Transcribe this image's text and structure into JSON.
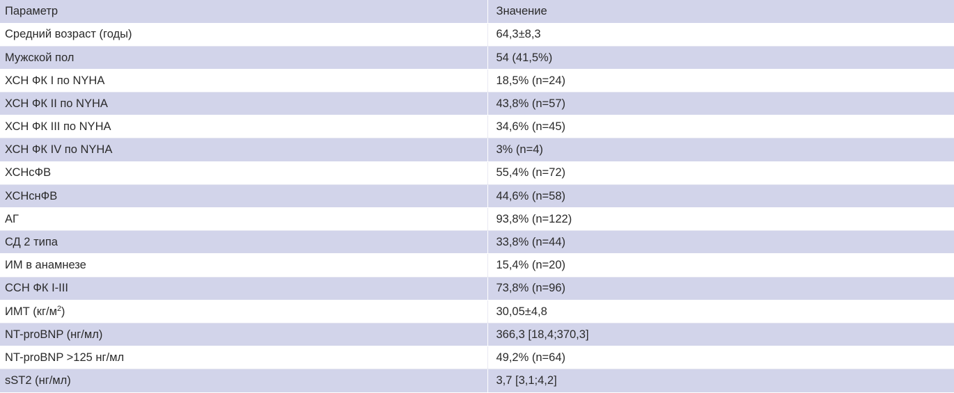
{
  "table": {
    "headers": {
      "param": "Параметр",
      "value": "Значение"
    },
    "rows": [
      {
        "param": "Средний возраст (годы)",
        "value": "64,3±8,3"
      },
      {
        "param": "Мужской пол",
        "value": "54 (41,5%)"
      },
      {
        "param": "ХСН ФК I по NYHA",
        "value": "18,5% (n=24)"
      },
      {
        "param": "ХСН ФК II по NYHA",
        "value": "43,8% (n=57)"
      },
      {
        "param": "ХСН ФК III по NYHA",
        "value": "34,6% (n=45)"
      },
      {
        "param": "ХСН ФК IV по NYHA",
        "value": "3% (n=4)"
      },
      {
        "param": "ХСНсФВ",
        "value": "55,4% (n=72)"
      },
      {
        "param": "ХСНснФВ",
        "value": "44,6% (n=58)"
      },
      {
        "param": "АГ",
        "value": "93,8% (n=122)"
      },
      {
        "param": "СД 2 типа",
        "value": "33,8% (n=44)"
      },
      {
        "param": "ИМ в анамнезе",
        "value": "15,4% (n=20)"
      },
      {
        "param": "ССН ФК I-III",
        "value": "73,8% (n=96)"
      },
      {
        "param": "ИМТ (кг/м",
        "param_sup": "2",
        "param_tail": ")",
        "value": "30,05±4,8"
      },
      {
        "param": "NT-proBNP (нг/мл)",
        "value": "366,3 [18,4;370,3]"
      },
      {
        "param": "NT-proBNP >125 нг/мл",
        "value": "49,2% (n=64)"
      },
      {
        "param": "sST2 (нг/мл)",
        "value": "3,7 [3,1;4,2]"
      }
    ]
  }
}
